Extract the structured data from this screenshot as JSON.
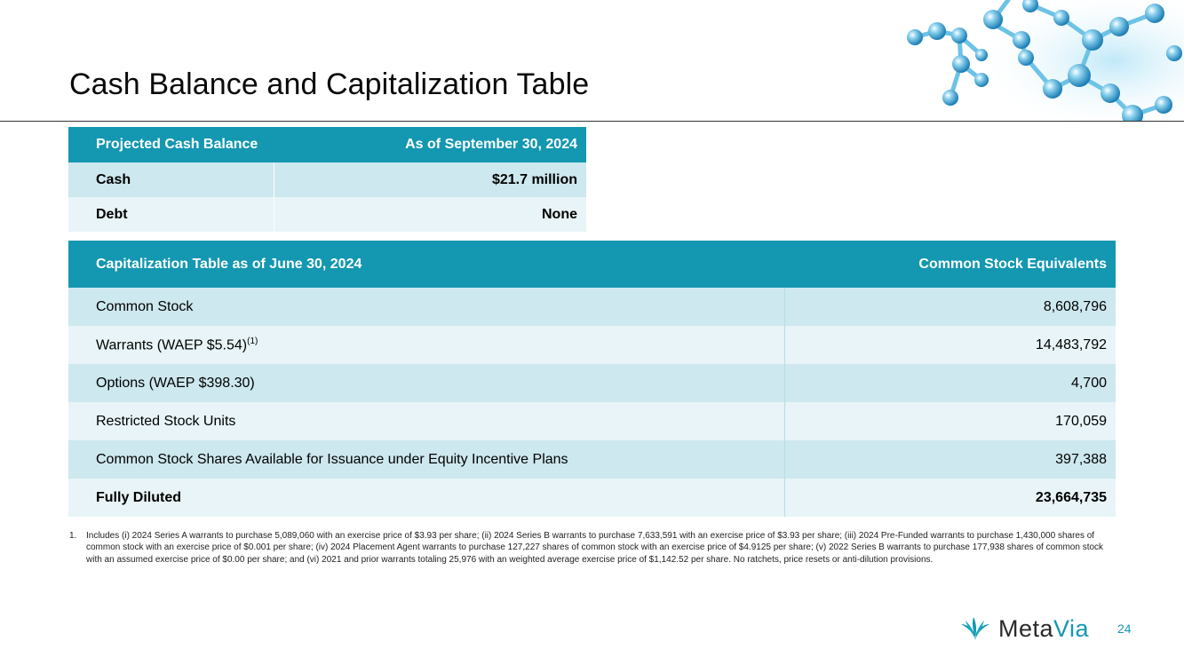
{
  "page": {
    "title": "Cash Balance and Capitalization Table",
    "page_number": "24"
  },
  "cash_table": {
    "header": [
      "Projected Cash Balance",
      "As of September 30, 2024"
    ],
    "rows": [
      {
        "label": "Cash",
        "value": "$21.7 million"
      },
      {
        "label": "Debt",
        "value": "None"
      }
    ]
  },
  "cap_table": {
    "header": [
      "Capitalization Table as of June 30, 2024",
      "Common Stock Equivalents"
    ],
    "rows": [
      {
        "label": "Common Stock",
        "value": "8,608,796"
      },
      {
        "label": "Warrants (WAEP $5.54)",
        "sup": "(1)",
        "value": "14,483,792"
      },
      {
        "label": "Options (WAEP $398.30)",
        "value": "4,700"
      },
      {
        "label": "Restricted Stock Units",
        "value": "170,059"
      },
      {
        "label": "Common Stock Shares Available for Issuance under Equity Incentive Plans",
        "value": "397,388"
      },
      {
        "label": "Fully Diluted",
        "value": "23,664,735"
      }
    ]
  },
  "footnote": {
    "number": "1.",
    "text": "Includes (i) 2024 Series A warrants to purchase 5,089,060 with an exercise price of $3.93 per share; (ii) 2024 Series B warrants to purchase 7,633,591 with an exercise price of $3.93 per share; (iii) 2024 Pre-Funded warrants to purchase 1,430,000 shares of common stock with an exercise price of $0.001 per share; (iv) 2024 Placement Agent warrants to purchase 127,227 shares of common stock with an exercise price of $4.9125 per share; (v) 2022 Series B warrants to purchase 177,938 shares of common stock with an assumed exercise price of $0.00 per share; and (vi) 2021 and prior warrants totaling 25,976 with an weighted average exercise price of $1,142.52 per share. No ratchets, price resets or anti-dilution provisions."
  },
  "logo": {
    "word_part1": "Meta",
    "word_part2": "Via",
    "icon": "leaf-sprout-icon",
    "brand_color": "#1497b1"
  },
  "decor": {
    "icon": "molecule-graphic"
  }
}
